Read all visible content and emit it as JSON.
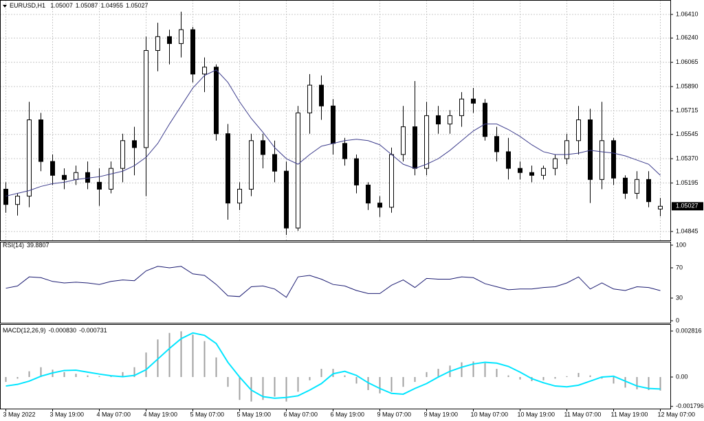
{
  "chart_data": [
    {
      "type": "candlestick",
      "title": "EURUSD,H1",
      "categories": [
        "3 May 2022",
        null,
        null,
        null,
        "3 May 19:00",
        null,
        null,
        null,
        "4 May 07:00",
        null,
        null,
        null,
        "4 May 19:00",
        null,
        null,
        null,
        "5 May 07:00",
        null,
        null,
        null,
        "5 May 19:00",
        null,
        null,
        null,
        "6 May 07:00",
        null,
        null,
        null,
        "6 May 19:00",
        null,
        null,
        null,
        "9 May 07:00",
        null,
        null,
        null,
        "9 May 19:00",
        null,
        null,
        null,
        "10 May 07:00",
        null,
        null,
        null,
        "10 May 19:00",
        null,
        null,
        null,
        "11 May 07:00",
        null,
        null,
        null,
        "11 May 19:00",
        null,
        null,
        null,
        "12 May 07:00"
      ],
      "open": [
        1.0515,
        1.0504,
        1.051,
        1.0565,
        1.0535,
        1.0525,
        1.0522,
        1.0527,
        1.052,
        1.0515,
        1.053,
        1.055,
        1.0545,
        1.0615,
        1.0625,
        1.062,
        1.063,
        1.0598,
        1.0603,
        1.0555,
        1.0505,
        1.0515,
        1.055,
        1.054,
        1.0528,
        1.0487,
        1.057,
        1.059,
        1.0575,
        1.0548,
        1.0537,
        1.0518,
        1.0505,
        1.0502,
        1.054,
        1.056,
        1.053,
        1.0568,
        1.0562,
        1.0568,
        1.058,
        1.0577,
        1.0553,
        1.0542,
        1.053,
        1.0527,
        1.0525,
        1.053,
        1.0537,
        1.055,
        1.0565,
        1.0522,
        1.055,
        1.0523,
        1.0512,
        1.0522,
        1.05007
      ],
      "high": [
        1.052,
        1.0512,
        1.0578,
        1.057,
        1.054,
        1.053,
        1.0532,
        1.0535,
        1.053,
        1.0535,
        1.0555,
        1.056,
        1.0625,
        1.0635,
        1.063,
        1.0643,
        1.0632,
        1.061,
        1.0605,
        1.0562,
        1.052,
        1.0555,
        1.0555,
        1.055,
        1.0535,
        1.0575,
        1.0598,
        1.0597,
        1.058,
        1.0552,
        1.054,
        1.052,
        1.051,
        1.0545,
        1.0575,
        1.0593,
        1.0578,
        1.0575,
        1.0572,
        1.0585,
        1.0588,
        1.058,
        1.056,
        1.0552,
        1.0535,
        1.0532,
        1.0532,
        1.054,
        1.0555,
        1.0575,
        1.0573,
        1.0578,
        1.0552,
        1.0525,
        1.0528,
        1.0528,
        1.05087
      ],
      "low": [
        1.0498,
        1.0496,
        1.0502,
        1.0528,
        1.0518,
        1.0515,
        1.0518,
        1.0515,
        1.0503,
        1.0512,
        1.052,
        1.0525,
        1.051,
        1.06,
        1.0605,
        1.061,
        1.0592,
        1.0585,
        1.055,
        1.0493,
        1.05,
        1.051,
        1.053,
        1.052,
        1.0482,
        1.0485,
        1.0555,
        1.0565,
        1.054,
        1.0532,
        1.0512,
        1.05,
        1.0495,
        1.0498,
        1.0535,
        1.0525,
        1.0525,
        1.0555,
        1.0555,
        1.056,
        1.057,
        1.055,
        1.0535,
        1.0522,
        1.0522,
        1.052,
        1.0522,
        1.0525,
        1.0533,
        1.054,
        1.0505,
        1.0515,
        1.0518,
        1.0508,
        1.0508,
        1.0502,
        1.04955
      ],
      "close": [
        1.0504,
        1.051,
        1.0565,
        1.0535,
        1.0525,
        1.0522,
        1.0527,
        1.052,
        1.0515,
        1.053,
        1.055,
        1.0545,
        1.0615,
        1.0625,
        1.062,
        1.063,
        1.0598,
        1.0603,
        1.0555,
        1.0505,
        1.0515,
        1.055,
        1.054,
        1.0528,
        1.0487,
        1.057,
        1.059,
        1.0575,
        1.0548,
        1.0537,
        1.0518,
        1.0505,
        1.0502,
        1.054,
        1.056,
        1.053,
        1.0568,
        1.0562,
        1.0568,
        1.058,
        1.0577,
        1.0553,
        1.0542,
        1.053,
        1.0527,
        1.0525,
        1.053,
        1.0537,
        1.055,
        1.0565,
        1.0522,
        1.055,
        1.0523,
        1.0512,
        1.0522,
        1.0506,
        1.05027
      ],
      "up_color": "#ffffff",
      "down_color": "#000000",
      "ma": {
        "color": "#3c3c8c",
        "values": [
          1.051,
          1.0512,
          1.0514,
          1.0517,
          1.0519,
          1.052,
          1.0522,
          1.0523,
          1.0524,
          1.0526,
          1.0528,
          1.0532,
          1.0538,
          1.0548,
          1.0562,
          1.0575,
          1.0588,
          1.0597,
          1.0601,
          1.0592,
          1.0578,
          1.0566,
          1.0556,
          1.0545,
          1.0537,
          1.0533,
          1.054,
          1.0546,
          1.0548,
          1.055,
          1.0551,
          1.055,
          1.0547,
          1.054,
          1.0533,
          1.053,
          1.0533,
          1.0537,
          1.0543,
          1.055,
          1.0557,
          1.0562,
          1.0562,
          1.0558,
          1.0553,
          1.0547,
          1.0542,
          1.054,
          1.054,
          1.0541,
          1.0543,
          1.0542,
          1.0541,
          1.0539,
          1.0536,
          1.0533,
          1.0525
        ]
      },
      "ylim": [
        1.04781,
        1.06514
      ],
      "yticks": [
        {
          "value": 1.0641,
          "label": "1.06410"
        },
        {
          "value": 1.0624,
          "label": "1.06240"
        },
        {
          "value": 1.06065,
          "label": "1.06065"
        },
        {
          "value": 1.0589,
          "label": "1.05890"
        },
        {
          "value": 1.05715,
          "label": "1.05715"
        },
        {
          "value": 1.05545,
          "label": "1.05545"
        },
        {
          "value": 1.0537,
          "label": "1.05370"
        },
        {
          "value": 1.05195,
          "label": "1.05195"
        },
        {
          "value": 1.04845,
          "label": "1.04845"
        }
      ],
      "grid": true
    },
    {
      "type": "line",
      "title": "RSI(14)",
      "current": 39.8807,
      "color": "#191970",
      "values": [
        43,
        46,
        58,
        57,
        52,
        50,
        51,
        50,
        48,
        52,
        54,
        53,
        66,
        72,
        70,
        72,
        62,
        60,
        48,
        33,
        32,
        45,
        46,
        42,
        31,
        58,
        60,
        55,
        48,
        46,
        40,
        36,
        36,
        47,
        54,
        44,
        56,
        55,
        55,
        58,
        57,
        49,
        45,
        41,
        42,
        42,
        44,
        45,
        50,
        58,
        42,
        50,
        42,
        40,
        45,
        44,
        39.8807
      ],
      "ylim": [
        -2.7,
        104.5
      ],
      "yticks": [
        0,
        30,
        70,
        100
      ]
    },
    {
      "type": "macd",
      "title": "MACD(12,26,9)",
      "main": {
        "value": -0.00083,
        "label": "-0.000830"
      },
      "signal_current": -0.000731,
      "color": "#a0a0a0",
      "signal_color": "#00e5ff",
      "values": [
        -0.0003,
        -0.0001,
        0.00035,
        0.0006,
        0.00045,
        0.0003,
        0.0002,
        0.0001,
        5e-05,
        0.0001,
        0.0003,
        0.0006,
        0.0015,
        0.0023,
        0.0027,
        0.0028,
        0.0026,
        0.0022,
        0.0012,
        -0.0006,
        -0.0014,
        -0.0015,
        -0.0014,
        -0.0012,
        -0.0015,
        -0.0009,
        -0.0002,
        0.0005,
        0.0005,
        0.0001,
        -0.0004,
        -0.0008,
        -0.001,
        -0.0009,
        -0.0006,
        -0.0003,
        0.0003,
        0.0005,
        0.0007,
        0.0009,
        0.00095,
        0.00085,
        0.0005,
        0.0001,
        -0.00015,
        -0.00025,
        -0.0002,
        -0.0001,
        5e-05,
        0.00025,
        0.0001,
        -0.0001,
        -0.0004,
        -0.00065,
        -0.00075,
        -0.0008,
        -0.00083
      ],
      "signal": [
        -0.00055,
        -0.00045,
        -0.00025,
        5e-05,
        0.00025,
        0.0004,
        0.00042,
        0.0003,
        0.00018,
        8e-05,
        2e-05,
        0.0001,
        0.00045,
        0.0011,
        0.00175,
        0.00235,
        0.0027,
        0.00255,
        0.00205,
        0.0009,
        0,
        -0.0008,
        -0.0012,
        -0.0013,
        -0.00125,
        -0.00115,
        -0.0008,
        -0.0004,
        0.0002,
        0.00035,
        0.0001,
        -0.00035,
        -0.0007,
        -0.001,
        -0.00105,
        -0.0007,
        -0.0004,
        0,
        0.00035,
        0.0006,
        0.0008,
        0.0009,
        0.00085,
        0.00065,
        0.0003,
        -0.0001,
        -0.00035,
        -0.00055,
        -0.0006,
        -0.0005,
        -0.00025,
        0,
        5e-05,
        -0.00025,
        -0.00055,
        -0.0007,
        -0.000731
      ],
      "ylim": [
        -0.001935,
        0.003236
      ],
      "yticks": [
        0.002816,
        {
          "value": 0,
          "label": "0.00"
        },
        -0.001796
      ]
    }
  ]
}
